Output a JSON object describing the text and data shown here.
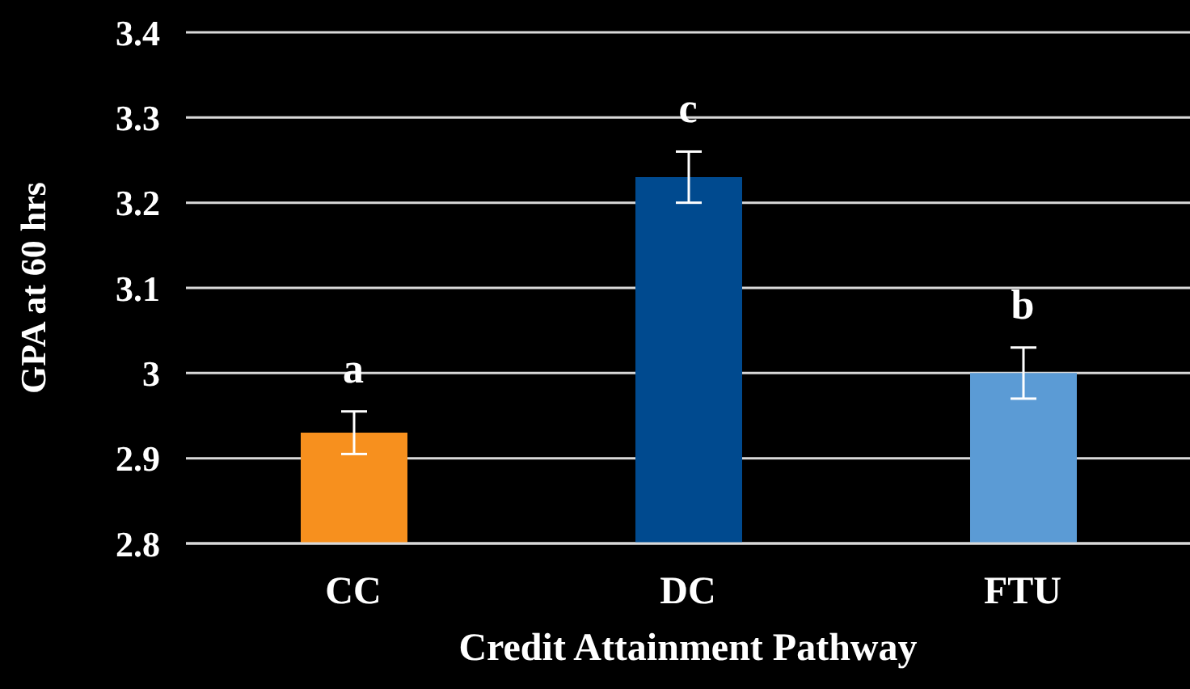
{
  "chart_data": {
    "type": "bar",
    "xlabel": "Credit Attainment Pathway",
    "ylabel": "GPA at 60 hrs",
    "categories": [
      "CC",
      "DC",
      "FTU"
    ],
    "values": [
      2.93,
      3.23,
      3.0
    ],
    "colors": [
      "#f7901e",
      "#004a8f",
      "#5b9bd5"
    ],
    "errors": [
      0.025,
      0.03,
      0.03
    ],
    "ylim": [
      2.8,
      3.4
    ],
    "yticks": [
      2.8,
      2.9,
      {
        "value": 3.0,
        "label": "3"
      },
      3.1,
      3.2,
      3.3,
      3.4
    ],
    "grid": "y",
    "annotations": [
      "a",
      "c",
      "b"
    ]
  }
}
